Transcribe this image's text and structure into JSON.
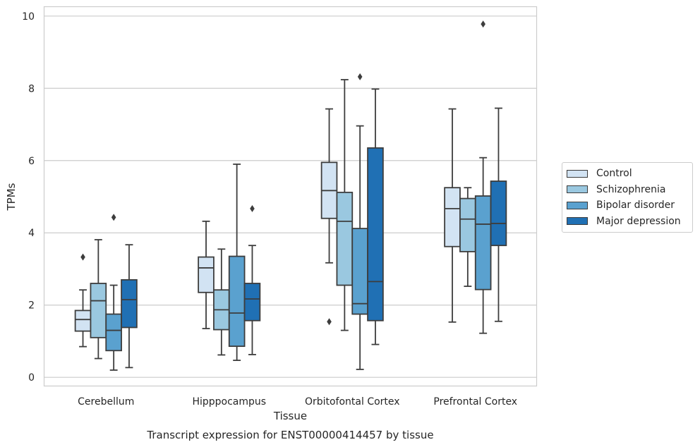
{
  "chart_data": {
    "type": "box",
    "caption": "Transcript expression for ENST00000414457 by tissue",
    "xlabel": "Tissue",
    "ylabel": "TPMs",
    "ylim": [
      -0.25,
      10.25
    ],
    "yticks": [
      0,
      2,
      4,
      6,
      8,
      10
    ],
    "grid": true,
    "legend_position": "right",
    "categories": [
      "Cerebellum",
      "Hipppocampus",
      "Orbitofontal Cortex",
      "Prefrontal Cortex"
    ],
    "series": [
      {
        "name": "Control",
        "color": "#d2e3f3",
        "boxes": [
          {
            "whislo": 0.85,
            "q1": 1.28,
            "med": 1.6,
            "q3": 1.85,
            "whishi": 2.42,
            "fliers": [
              3.33
            ]
          },
          {
            "whislo": 1.35,
            "q1": 2.35,
            "med": 3.03,
            "q3": 3.33,
            "whishi": 4.32,
            "fliers": []
          },
          {
            "whislo": 3.17,
            "q1": 4.4,
            "med": 5.17,
            "q3": 5.95,
            "whishi": 7.43,
            "fliers": [
              1.54
            ]
          },
          {
            "whislo": 1.53,
            "q1": 3.62,
            "med": 4.67,
            "q3": 5.25,
            "whishi": 7.43,
            "fliers": []
          }
        ]
      },
      {
        "name": "Schizophrenia",
        "color": "#9ac8e0",
        "boxes": [
          {
            "whislo": 0.52,
            "q1": 1.1,
            "med": 2.12,
            "q3": 2.6,
            "whishi": 3.81,
            "fliers": []
          },
          {
            "whislo": 0.62,
            "q1": 1.32,
            "med": 1.87,
            "q3": 2.42,
            "whishi": 3.55,
            "fliers": []
          },
          {
            "whislo": 1.3,
            "q1": 2.55,
            "med": 4.32,
            "q3": 5.12,
            "whishi": 8.24,
            "fliers": []
          },
          {
            "whislo": 2.52,
            "q1": 3.48,
            "med": 4.38,
            "q3": 4.95,
            "whishi": 5.25,
            "fliers": []
          }
        ]
      },
      {
        "name": "Bipolar disorder",
        "color": "#5aa1cf",
        "boxes": [
          {
            "whislo": 0.2,
            "q1": 0.74,
            "med": 1.3,
            "q3": 1.75,
            "whishi": 2.55,
            "fliers": [
              4.43
            ]
          },
          {
            "whislo": 0.47,
            "q1": 0.86,
            "med": 1.78,
            "q3": 3.35,
            "whishi": 5.9,
            "fliers": []
          },
          {
            "whislo": 0.22,
            "q1": 1.75,
            "med": 2.04,
            "q3": 4.12,
            "whishi": 6.96,
            "fliers": [
              8.32
            ]
          },
          {
            "whislo": 1.22,
            "q1": 2.43,
            "med": 4.24,
            "q3": 5.02,
            "whishi": 6.08,
            "fliers": [
              9.78
            ]
          }
        ]
      },
      {
        "name": "Major depression",
        "color": "#2070b4",
        "boxes": [
          {
            "whislo": 0.27,
            "q1": 1.38,
            "med": 2.15,
            "q3": 2.7,
            "whishi": 3.67,
            "fliers": []
          },
          {
            "whislo": 0.63,
            "q1": 1.57,
            "med": 2.17,
            "q3": 2.6,
            "whishi": 3.65,
            "fliers": [
              4.67
            ]
          },
          {
            "whislo": 0.91,
            "q1": 1.57,
            "med": 2.65,
            "q3": 6.35,
            "whishi": 7.98,
            "fliers": []
          },
          {
            "whislo": 1.55,
            "q1": 3.65,
            "med": 4.26,
            "q3": 5.43,
            "whishi": 7.45,
            "fliers": []
          }
        ]
      }
    ]
  }
}
